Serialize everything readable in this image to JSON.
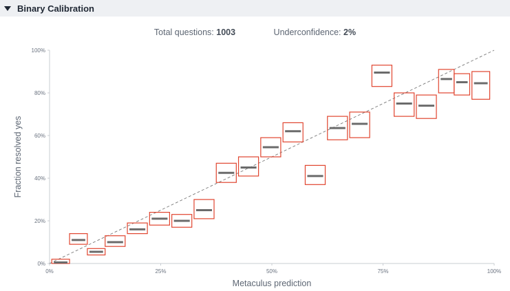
{
  "section": {
    "title": "Binary Calibration"
  },
  "stats": {
    "total_label": "Total questions:",
    "total_value": "1003",
    "underconfidence_label": "Underconfidence:",
    "underconfidence_value": "2%"
  },
  "colors": {
    "box_stroke": "#e0442e",
    "median_line": "#6b6b6b",
    "diagonal": "#777777",
    "axis": "#c8ccd2"
  },
  "chart_data": {
    "type": "scatter",
    "title": "",
    "xlabel": "Metaculus prediction",
    "ylabel": "Fraction resolved yes",
    "xlim": [
      0,
      100
    ],
    "ylim": [
      0,
      100
    ],
    "x_ticks": [
      "0%",
      "25%",
      "50%",
      "75%",
      "100%"
    ],
    "y_ticks": [
      "0%",
      "20%",
      "40%",
      "60%",
      "80%",
      "100%"
    ],
    "reference_line": "diagonal y = x (dashed)",
    "grid": false,
    "bins": [
      {
        "x_low": 0.5,
        "x_high": 4.5,
        "y_low": 0,
        "y_high": 2,
        "median": 0.5
      },
      {
        "x_low": 4.5,
        "x_high": 8.5,
        "y_low": 9,
        "y_high": 14,
        "median": 11
      },
      {
        "x_low": 8.5,
        "x_high": 12.5,
        "y_low": 4,
        "y_high": 7,
        "median": 5.5
      },
      {
        "x_low": 12.5,
        "x_high": 17,
        "y_low": 8,
        "y_high": 13,
        "median": 10
      },
      {
        "x_low": 17.5,
        "x_high": 22,
        "y_low": 14,
        "y_high": 19,
        "median": 16
      },
      {
        "x_low": 22.5,
        "x_high": 27,
        "y_low": 18,
        "y_high": 24,
        "median": 21
      },
      {
        "x_low": 27.5,
        "x_high": 32,
        "y_low": 17,
        "y_high": 23,
        "median": 20
      },
      {
        "x_low": 32.5,
        "x_high": 37,
        "y_low": 21,
        "y_high": 30,
        "median": 25
      },
      {
        "x_low": 37.5,
        "x_high": 42,
        "y_low": 38,
        "y_high": 47,
        "median": 42.5
      },
      {
        "x_low": 42.5,
        "x_high": 47,
        "y_low": 41,
        "y_high": 50,
        "median": 45
      },
      {
        "x_low": 47.5,
        "x_high": 52,
        "y_low": 50,
        "y_high": 59,
        "median": 54.5
      },
      {
        "x_low": 52.5,
        "x_high": 57,
        "y_low": 57,
        "y_high": 66,
        "median": 62
      },
      {
        "x_low": 57.5,
        "x_high": 62,
        "y_low": 37,
        "y_high": 46,
        "median": 41
      },
      {
        "x_low": 62.5,
        "x_high": 67,
        "y_low": 58,
        "y_high": 69,
        "median": 63.5
      },
      {
        "x_low": 67.5,
        "x_high": 72,
        "y_low": 59,
        "y_high": 71,
        "median": 65.5
      },
      {
        "x_low": 72.5,
        "x_high": 77,
        "y_low": 83,
        "y_high": 93,
        "median": 89.5
      },
      {
        "x_low": 77.5,
        "x_high": 82,
        "y_low": 69,
        "y_high": 80,
        "median": 75
      },
      {
        "x_low": 82.5,
        "x_high": 87,
        "y_low": 68,
        "y_high": 79,
        "median": 74
      },
      {
        "x_low": 87.5,
        "x_high": 91,
        "y_low": 80,
        "y_high": 91,
        "median": 86.5
      },
      {
        "x_low": 91,
        "x_high": 94.5,
        "y_low": 79,
        "y_high": 89,
        "median": 85
      },
      {
        "x_low": 95,
        "x_high": 99,
        "y_low": 77,
        "y_high": 90,
        "median": 84.5
      }
    ]
  }
}
